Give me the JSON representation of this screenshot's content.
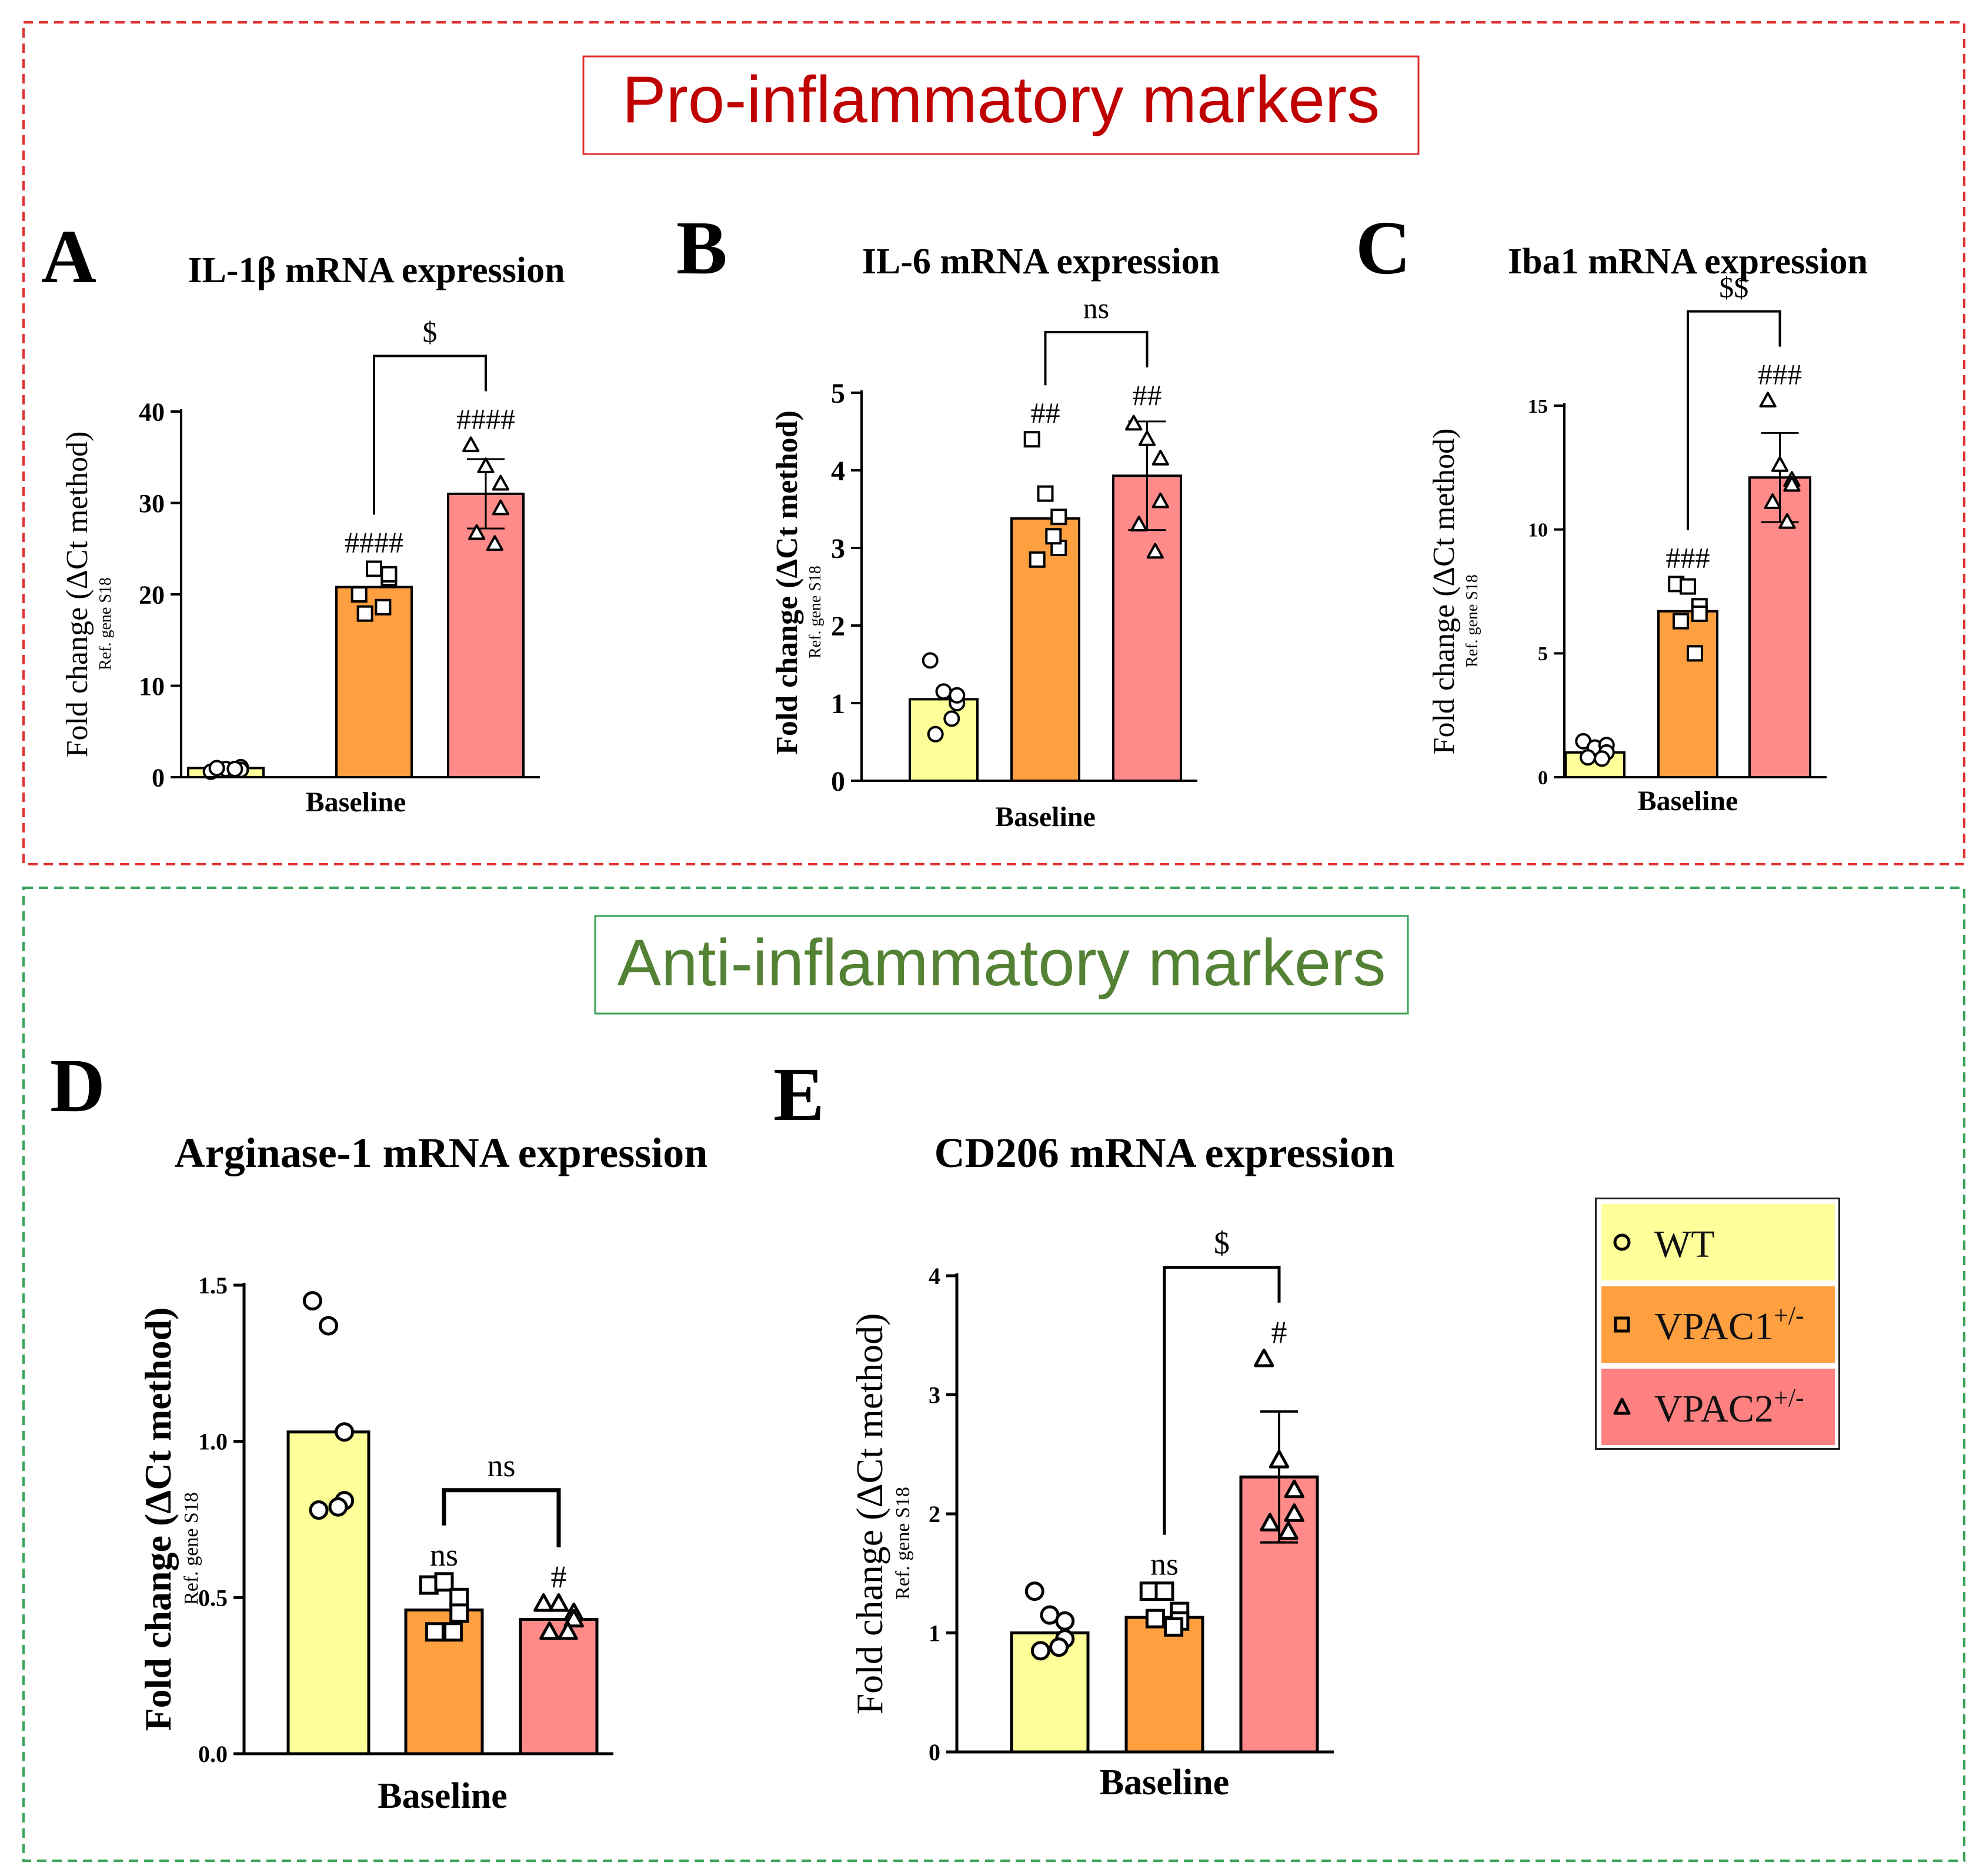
{
  "sections": {
    "pro": {
      "title": "Pro-inflammatory markers",
      "title_color": "#c00000",
      "border_color": "#e03030"
    },
    "anti": {
      "title": "Anti-inflammatory markers",
      "title_color": "#548235",
      "border_color": "#3aa35a"
    }
  },
  "colors": {
    "WT": "#ffff99",
    "VPAC1": "#ffa040",
    "VPAC2": "#ff8a8a"
  },
  "legend": [
    {
      "key": "WT",
      "label": "WT",
      "sup": "",
      "marker": "circle",
      "bg": "#ffff99"
    },
    {
      "key": "VPAC1",
      "label": "VPAC1",
      "sup": "+/-",
      "marker": "square",
      "bg": "#ffa040"
    },
    {
      "key": "VPAC2",
      "label": "VPAC2",
      "sup": "+/-",
      "marker": "triangle",
      "bg": "#ff8080"
    }
  ],
  "chart_data": [
    {
      "panel": "A",
      "type": "bar",
      "title": "IL-1β mRNA expression",
      "xlabel": "Baseline",
      "ylabel": "Fold change (ΔCt method)",
      "ylabel_sub": "Ref. gene S18",
      "ylim": [
        0,
        40
      ],
      "yticks": [
        "0",
        "10",
        "20",
        "30",
        "40"
      ],
      "ytick_values": [
        0,
        10,
        20,
        30,
        40
      ],
      "categories": [
        "WT",
        "VPAC1+/-",
        "VPAC2+/-"
      ],
      "values": [
        1.0,
        20.8,
        31.0
      ],
      "errors": [
        0,
        0,
        3.8
      ],
      "points": [
        [
          0.6,
          0.9,
          1.1,
          0.8,
          1.0,
          0.9
        ],
        [
          20.0,
          22.8,
          21.8,
          22.2,
          17.9,
          18.6
        ],
        [
          36.3,
          34.0,
          32.1,
          29.4,
          26.7,
          25.5
        ]
      ],
      "annotations": [
        "",
        "####",
        "####"
      ],
      "bracket": {
        "from": 1,
        "to": 2,
        "label": "$"
      }
    },
    {
      "panel": "B",
      "type": "bar",
      "title": "IL-6 mRNA expression",
      "xlabel": "Baseline",
      "ylabel": "Fold change (ΔCt method)",
      "ylabel_sub": "Ref. gene S18",
      "ylim": [
        0,
        5
      ],
      "yticks": [
        "0",
        "1",
        "2",
        "3",
        "4",
        "5"
      ],
      "ytick_values": [
        0,
        1,
        2,
        3,
        4,
        5
      ],
      "categories": [
        "WT",
        "VPAC1+/-",
        "VPAC2+/-"
      ],
      "values": [
        1.05,
        3.38,
        3.93
      ],
      "errors": [
        0,
        0,
        0.7
      ],
      "points": [
        [
          1.55,
          1.15,
          1.0,
          1.1,
          0.6,
          0.8
        ],
        [
          4.4,
          3.7,
          3.4,
          3.0,
          2.85,
          3.15
        ],
        [
          4.6,
          4.4,
          4.15,
          3.6,
          3.3,
          2.95
        ]
      ],
      "annotations": [
        "",
        "##",
        "##"
      ],
      "bracket": {
        "from": 1,
        "to": 2,
        "label": "ns"
      }
    },
    {
      "panel": "C",
      "type": "bar",
      "title": "Iba1 mRNA expression",
      "xlabel": "Baseline",
      "ylabel": "Fold change (ΔCt method)",
      "ylabel_sub": "Ref. gene S18",
      "ylim": [
        0,
        15
      ],
      "yticks": [
        "0",
        "5",
        "10",
        "15"
      ],
      "ytick_values": [
        0,
        5,
        10,
        15
      ],
      "categories": [
        "WT",
        "VPAC1+/-",
        "VPAC2+/-"
      ],
      "values": [
        1.0,
        6.7,
        12.1
      ],
      "errors": [
        0,
        0,
        1.8
      ],
      "points": [
        [
          1.45,
          1.2,
          1.3,
          1.0,
          0.8,
          0.75
        ],
        [
          7.8,
          7.7,
          6.9,
          6.6,
          6.3,
          5.0
        ],
        [
          15.2,
          12.6,
          12.0,
          11.8,
          11.1,
          10.3
        ]
      ],
      "annotations": [
        "",
        "###",
        "###"
      ],
      "bracket": {
        "from": 1,
        "to": 2,
        "label": "$$"
      }
    },
    {
      "panel": "D",
      "type": "bar",
      "title": "Arginase-1 mRNA expression",
      "xlabel": "Baseline",
      "ylabel": "Fold change (ΔCt method)",
      "ylabel_sub": "Ref. gene S18",
      "ylim": [
        0,
        1.5
      ],
      "yticks": [
        "0.0",
        "0.5",
        "1.0",
        "1.5"
      ],
      "ytick_values": [
        0,
        0.5,
        1.0,
        1.5
      ],
      "categories": [
        "WT",
        "VPAC1+/-",
        "VPAC2+/-"
      ],
      "values": [
        1.03,
        0.46,
        0.43
      ],
      "errors": [
        0,
        0,
        0
      ],
      "points": [
        [
          1.45,
          1.37,
          1.03,
          0.81,
          0.78,
          0.79
        ],
        [
          0.54,
          0.55,
          0.5,
          0.45,
          0.39,
          0.39
        ],
        [
          0.48,
          0.48,
          0.45,
          0.43,
          0.39,
          0.39
        ]
      ],
      "annotations": [
        "",
        "ns",
        "#"
      ],
      "bracket": {
        "from": 1,
        "to": 2,
        "label": "ns"
      }
    },
    {
      "panel": "E",
      "type": "bar",
      "title": "CD206 mRNA expression",
      "xlabel": "Baseline",
      "ylabel": "Fold change (ΔCt method)",
      "ylabel_sub": "Ref. gene S18",
      "ylim": [
        0,
        4
      ],
      "yticks": [
        "0",
        "1",
        "2",
        "3",
        "4"
      ],
      "ytick_values": [
        0,
        1,
        2,
        3,
        4
      ],
      "categories": [
        "WT",
        "VPAC1+/-",
        "VPAC2+/-"
      ],
      "values": [
        1.0,
        1.13,
        2.31
      ],
      "errors": [
        0,
        0,
        0.55
      ],
      "points": [
        [
          1.35,
          1.15,
          1.1,
          0.95,
          0.85,
          0.88
        ],
        [
          1.35,
          1.35,
          1.18,
          1.1,
          1.12,
          1.05
        ],
        [
          3.3,
          2.45,
          2.2,
          2.0,
          1.92,
          1.85
        ]
      ],
      "annotations": [
        "",
        "ns",
        "#"
      ],
      "bracket": {
        "from": 1,
        "to": 2,
        "label": "$"
      }
    }
  ]
}
